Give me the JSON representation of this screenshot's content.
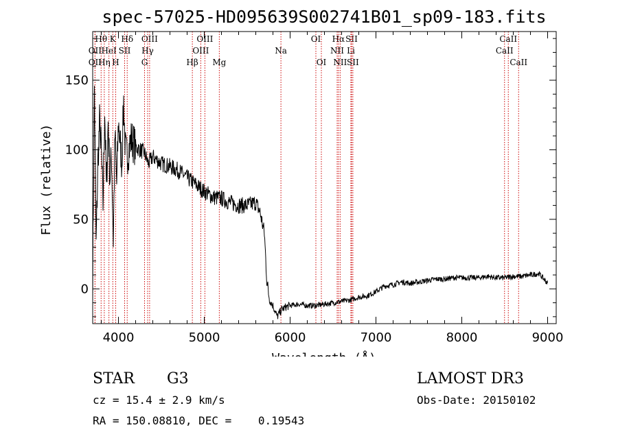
{
  "chart_data": {
    "type": "line",
    "title": "spec-57025-HD095639S002741B01_sp09-183.fits",
    "xlabel": "Wavelength (Å)",
    "ylabel": "Flux (relative)",
    "xlim": [
      3700,
      9100
    ],
    "ylim": [
      -25,
      185
    ],
    "xticks": [
      4000,
      5000,
      6000,
      7000,
      8000,
      9000
    ],
    "xtick_labels": [
      "4000",
      "5000",
      "6000",
      "7000",
      "8000",
      "9000"
    ],
    "yticks": [
      0,
      50,
      100,
      150
    ],
    "ytick_labels": [
      "0",
      "50",
      "100",
      "150"
    ],
    "grid": false,
    "series": [
      {
        "name": "spectrum",
        "x": [
          3700,
          3720,
          3740,
          3760,
          3780,
          3800,
          3820,
          3840,
          3860,
          3880,
          3900,
          3920,
          3940,
          3960,
          3980,
          4000,
          4020,
          4040,
          4060,
          4080,
          4100,
          4150,
          4200,
          4250,
          4300,
          4350,
          4400,
          4500,
          4600,
          4700,
          4800,
          4900,
          5000,
          5100,
          5200,
          5300,
          5400,
          5500,
          5600,
          5650,
          5700,
          5730,
          5760,
          5800,
          5850,
          5900,
          5950,
          6000,
          6100,
          6200,
          6300,
          6400,
          6500,
          6600,
          6700,
          6800,
          6900,
          7000,
          7100,
          7200,
          7300,
          7400,
          7500,
          7600,
          7700,
          7800,
          7900,
          8000,
          8100,
          8200,
          8300,
          8400,
          8500,
          8600,
          8700,
          8800,
          8900,
          9000
        ],
        "y": [
          5,
          145,
          30,
          90,
          120,
          100,
          60,
          130,
          70,
          120,
          80,
          95,
          35,
          110,
          75,
          120,
          105,
          90,
          135,
          100,
          95,
          108,
          102,
          100,
          98,
          90,
          95,
          90,
          88,
          85,
          80,
          75,
          70,
          66,
          65,
          62,
          60,
          60,
          62,
          55,
          40,
          5,
          -8,
          -12,
          -20,
          -15,
          -13,
          -12,
          -11,
          -12,
          -12,
          -11,
          -10,
          -9,
          -8,
          -6,
          -5,
          -2,
          2,
          3,
          5,
          4,
          5,
          6,
          7,
          7,
          8,
          8,
          8,
          8,
          9,
          8,
          8,
          9,
          9,
          10,
          11,
          4
        ]
      }
    ],
    "line_ids": [
      {
        "label": "Hθ",
        "x": 3798,
        "row": 1
      },
      {
        "label": "OII",
        "x": 3727,
        "row": 2
      },
      {
        "label": "OII",
        "x": 3727,
        "row": 3
      },
      {
        "label": "HeI",
        "x": 3889,
        "row": 2
      },
      {
        "label": "K",
        "x": 3934,
        "row": 1
      },
      {
        "label": "Hη",
        "x": 3835,
        "row": 3
      },
      {
        "label": "H",
        "x": 3968,
        "row": 3
      },
      {
        "label": "Hδ",
        "x": 4102,
        "row": 1
      },
      {
        "label": "SII",
        "x": 4072,
        "row": 2
      },
      {
        "label": "OIII",
        "x": 4363,
        "row": 1
      },
      {
        "label": "Hγ",
        "x": 4340,
        "row": 2
      },
      {
        "label": "G",
        "x": 4304,
        "row": 3
      },
      {
        "label": "OIII",
        "x": 5007,
        "row": 1
      },
      {
        "label": "OIII",
        "x": 4959,
        "row": 2
      },
      {
        "label": "Hβ",
        "x": 4861,
        "row": 3
      },
      {
        "label": "Mg",
        "x": 5175,
        "row": 3
      },
      {
        "label": "Na",
        "x": 5893,
        "row": 2
      },
      {
        "label": "OI",
        "x": 6300,
        "row": 1
      },
      {
        "label": "OI",
        "x": 6364,
        "row": 3
      },
      {
        "label": "Hα",
        "x": 6563,
        "row": 1
      },
      {
        "label": "SII",
        "x": 6716,
        "row": 1
      },
      {
        "label": "NII",
        "x": 6548,
        "row": 2
      },
      {
        "label": "Li",
        "x": 6708,
        "row": 2
      },
      {
        "label": "NII",
        "x": 6583,
        "row": 3
      },
      {
        "label": "SII",
        "x": 6731,
        "row": 3
      },
      {
        "label": "CaII",
        "x": 8542,
        "row": 1
      },
      {
        "label": "CaII",
        "x": 8498,
        "row": 2
      },
      {
        "label": "CaII",
        "x": 8662,
        "row": 3
      }
    ]
  },
  "info": {
    "class": "STAR",
    "subclass": "G3",
    "survey": "LAMOST DR3",
    "cz": "cz = 15.4 ± 2.9 km/s",
    "obs_date": "Obs-Date: 20150102",
    "coords": "RA = 150.08810, DEC =    0.19543"
  },
  "colors": {
    "line_marker": "#cc0000",
    "spectrum": "#000000"
  }
}
